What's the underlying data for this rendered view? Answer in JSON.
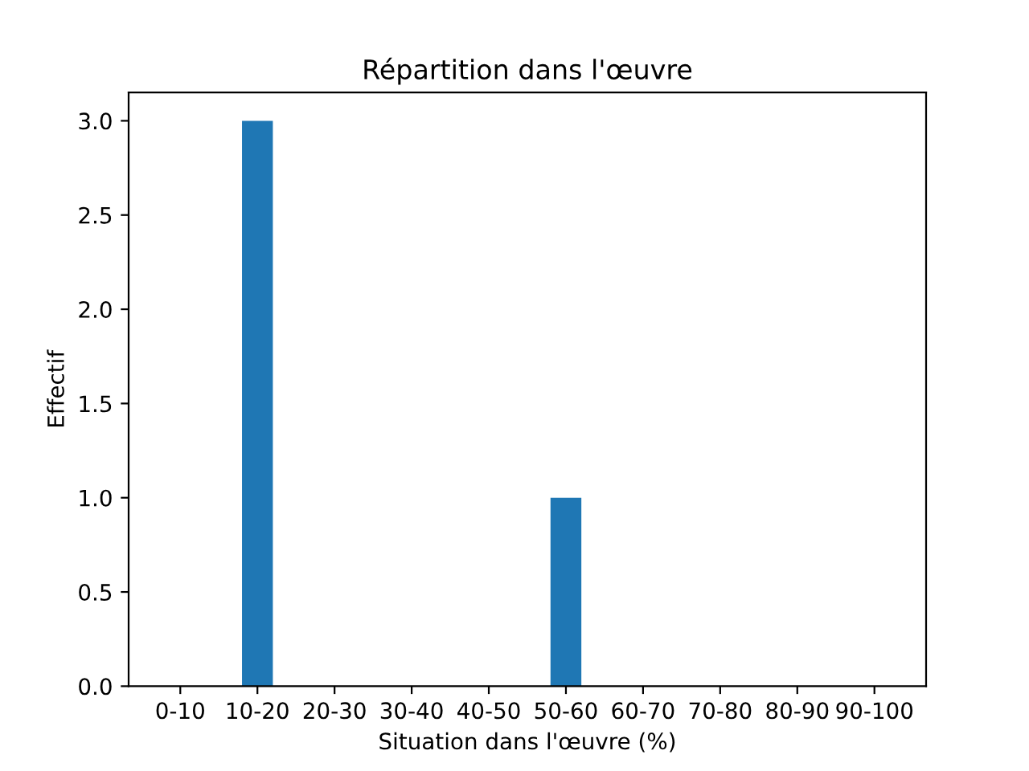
{
  "chart_data": {
    "type": "bar",
    "title": "Répartition dans l'œuvre",
    "xlabel": "Situation dans l'œuvre (%)",
    "ylabel": "Effectif",
    "categories": [
      "0-10",
      "10-20",
      "20-30",
      "30-40",
      "40-50",
      "50-60",
      "60-70",
      "70-80",
      "80-90",
      "90-100"
    ],
    "values": [
      0,
      3,
      0,
      0,
      0,
      1,
      0,
      0,
      0,
      0
    ],
    "color": "#1f77b4",
    "ylim": [
      0,
      3.15
    ],
    "yticks": [
      {
        "value": 0,
        "label": "0.0"
      },
      {
        "value": 0.5,
        "label": "0.5"
      },
      {
        "value": 1,
        "label": "1.0"
      },
      {
        "value": 1.5,
        "label": "1.5"
      },
      {
        "value": 2,
        "label": "2.0"
      },
      {
        "value": 2.5,
        "label": "2.5"
      },
      {
        "value": 3,
        "label": "3.0"
      }
    ],
    "grid": false,
    "legend": false
  }
}
